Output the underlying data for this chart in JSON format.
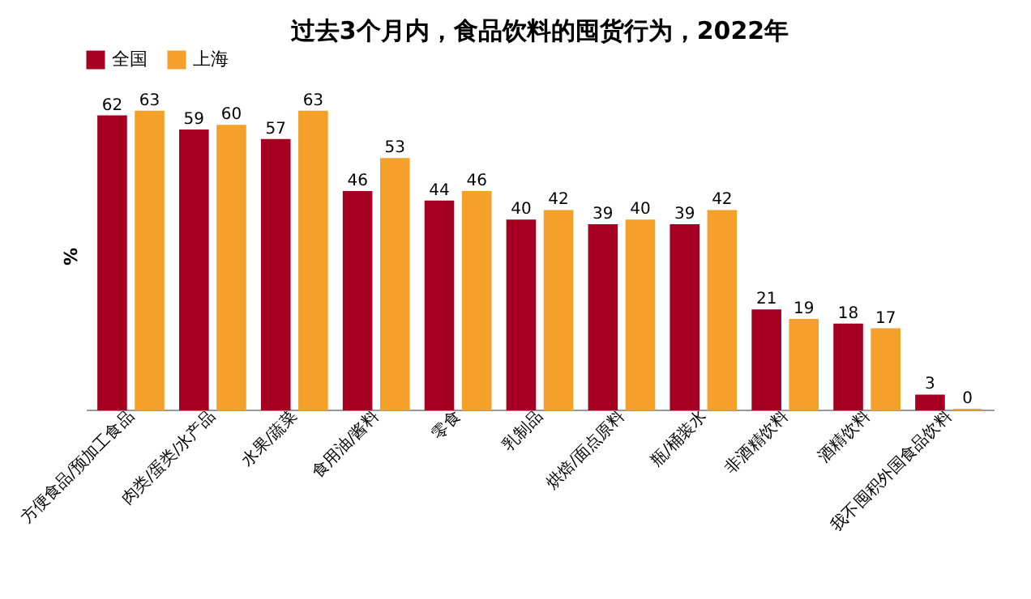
{
  "chart_data": {
    "type": "bar",
    "title": "过去3个月内，食品饮料的囤货行为，2022年",
    "ylabel": "%",
    "categories": [
      "方便食品/预加工食品",
      "肉类/蛋类/水产品",
      "水果/蔬菜",
      "食用油/酱料",
      "零食",
      "乳制品",
      "烘焙/面点原料",
      "瓶/桶装水",
      "非酒精饮料",
      "酒精饮料",
      "我不囤积外国食品饮料"
    ],
    "series": [
      {
        "name": "全国",
        "color": "#a50021",
        "values": [
          62,
          59,
          57,
          46,
          44,
          40,
          39,
          39,
          21,
          18,
          3
        ]
      },
      {
        "name": "上海",
        "color": "#f5a02a",
        "values": [
          63,
          60,
          63,
          53,
          46,
          42,
          40,
          42,
          19,
          17,
          0
        ]
      }
    ],
    "tick_labels": "x",
    "data_labels": true,
    "legend": "top"
  }
}
